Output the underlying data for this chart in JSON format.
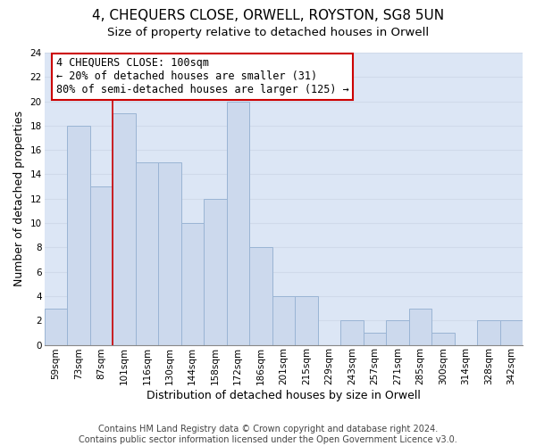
{
  "title": "4, CHEQUERS CLOSE, ORWELL, ROYSTON, SG8 5UN",
  "subtitle": "Size of property relative to detached houses in Orwell",
  "xlabel": "Distribution of detached houses by size in Orwell",
  "ylabel": "Number of detached properties",
  "categories": [
    "59sqm",
    "73sqm",
    "87sqm",
    "101sqm",
    "116sqm",
    "130sqm",
    "144sqm",
    "158sqm",
    "172sqm",
    "186sqm",
    "201sqm",
    "215sqm",
    "229sqm",
    "243sqm",
    "257sqm",
    "271sqm",
    "285sqm",
    "300sqm",
    "314sqm",
    "328sqm",
    "342sqm"
  ],
  "values": [
    3,
    18,
    13,
    19,
    15,
    15,
    10,
    12,
    20,
    8,
    4,
    4,
    0,
    2,
    1,
    2,
    3,
    1,
    0,
    2,
    2
  ],
  "bar_color": "#ccd9ed",
  "bar_edge_color": "#9ab4d4",
  "vline_x_index": 3,
  "vline_color": "#cc0000",
  "annotation_line1": "4 CHEQUERS CLOSE: 100sqm",
  "annotation_line2": "← 20% of detached houses are smaller (31)",
  "annotation_line3": "80% of semi-detached houses are larger (125) →",
  "annotation_box_edgecolor": "#cc0000",
  "annotation_box_facecolor": "#ffffff",
  "ylim": [
    0,
    24
  ],
  "yticks": [
    0,
    2,
    4,
    6,
    8,
    10,
    12,
    14,
    16,
    18,
    20,
    22,
    24
  ],
  "grid_color": "#d0daea",
  "background_color": "#dce6f5",
  "footer_text": "Contains HM Land Registry data © Crown copyright and database right 2024.\nContains public sector information licensed under the Open Government Licence v3.0.",
  "title_fontsize": 11,
  "subtitle_fontsize": 9.5,
  "xlabel_fontsize": 9,
  "ylabel_fontsize": 9,
  "tick_fontsize": 7.5,
  "annotation_fontsize": 8.5,
  "footer_fontsize": 7
}
